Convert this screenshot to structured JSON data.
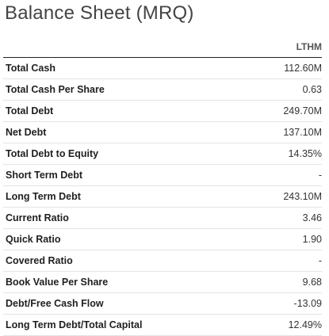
{
  "title": "Balance Sheet (MRQ)",
  "column_header": "LTHM",
  "rows": [
    {
      "label": "Total Cash",
      "value": "112.60M"
    },
    {
      "label": "Total Cash Per Share",
      "value": "0.63"
    },
    {
      "label": "Total Debt",
      "value": "249.70M"
    },
    {
      "label": "Net Debt",
      "value": "137.10M"
    },
    {
      "label": "Total Debt to Equity",
      "value": "14.35%"
    },
    {
      "label": "Short Term Debt",
      "value": "-"
    },
    {
      "label": "Long Term Debt",
      "value": "243.10M"
    },
    {
      "label": "Current Ratio",
      "value": "3.46"
    },
    {
      "label": "Quick Ratio",
      "value": "1.90"
    },
    {
      "label": "Covered Ratio",
      "value": "-"
    },
    {
      "label": "Book Value Per Share",
      "value": "9.68"
    },
    {
      "label": "Debt/Free Cash Flow",
      "value": "-13.09"
    },
    {
      "label": "Long Term Debt/Total Capital",
      "value": "12.49%"
    }
  ]
}
